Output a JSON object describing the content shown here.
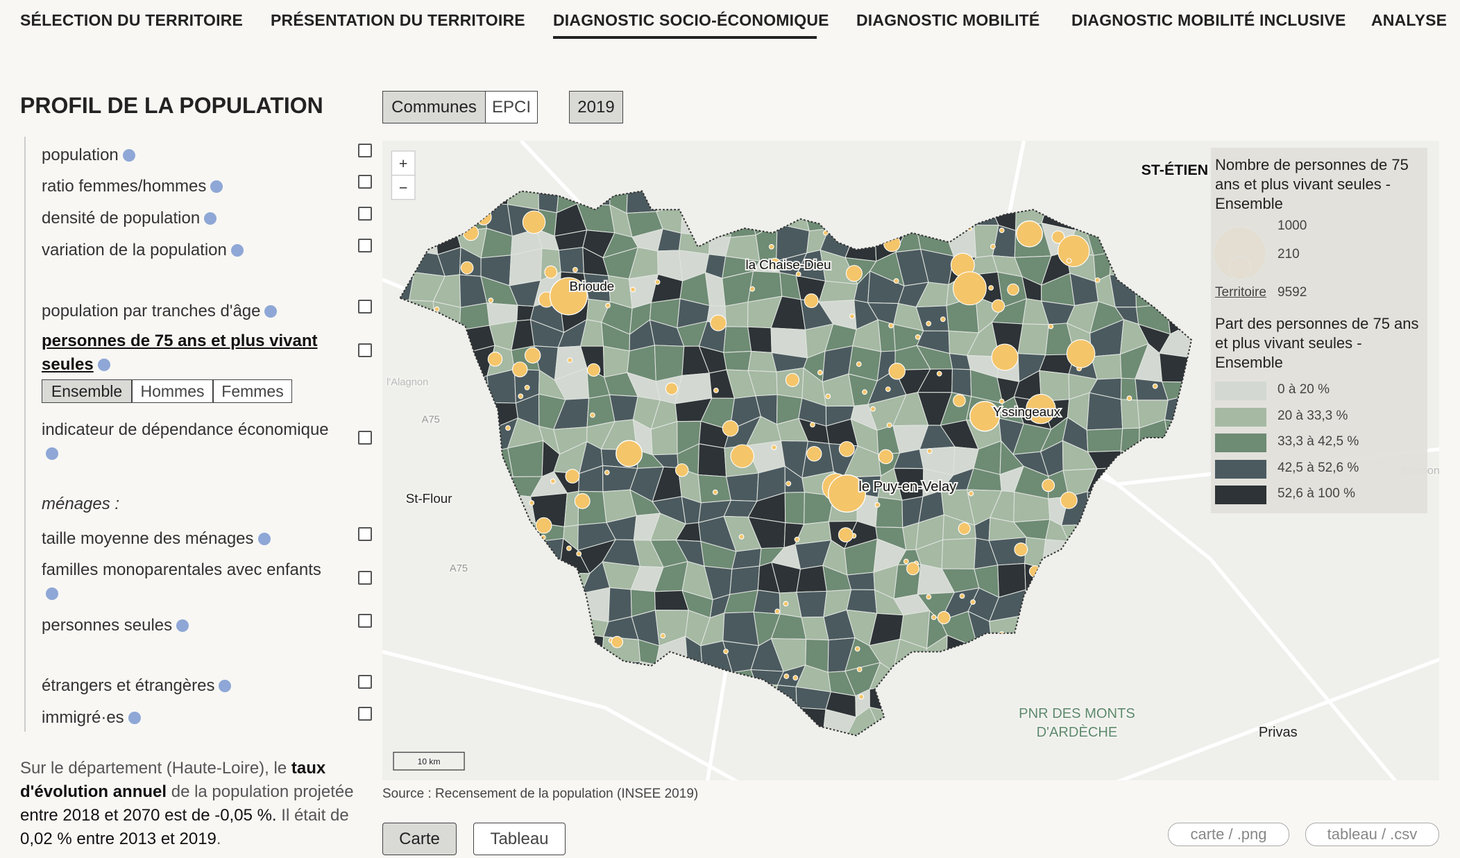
{
  "nav": [
    "SÉLECTION DU TERRITOIRE",
    "PRÉSENTATION DU TERRITOIRE",
    "DIAGNOSTIC SOCIO-ÉCONOMIQUE",
    "DIAGNOSTIC MOBILITÉ",
    "DIAGNOSTIC MOBILITÉ INCLUSIVE",
    "ANALYSE"
  ],
  "panel": {
    "title": "PROFIL DE LA POPULATION",
    "items": [
      "population",
      "ratio femmes/hommes",
      "densité de population",
      "variation de la population",
      "population par tranches d'âge",
      "personnes de 75 ans et plus vivant seules",
      "indicateur de dépendance économique",
      "ménages :",
      "taille moyenne des ménages",
      "familles monoparentales avec enfants",
      "personnes seules",
      "étrangers et étrangères",
      "immigré·es"
    ],
    "toggle": [
      "Ensemble",
      "Hommes",
      "Femmes"
    ]
  },
  "summary": [
    "Sur le département (Haute-Loire), le ",
    "taux d'évolution annuel",
    " de la population projetée ",
    "entre 2018 et 2070 est de -0,05 %.",
    " Il était de ",
    "0,02 % entre 2013 et 2019",
    "."
  ],
  "map_controls": {
    "level": [
      "Communes",
      "EPCI"
    ],
    "year": "2019",
    "zoom": [
      "+",
      "−"
    ]
  },
  "map_labels": [
    "Brioude",
    "la Chaise-Dieu",
    "Yssingeaux",
    "le Puy-en-Velay",
    "St-Flour",
    "PNR DES MONTS",
    "D'ARDÈCHE",
    "Privas",
    "ST-ÉTIEN",
    "Tournon",
    "l'Alagnon",
    "A75",
    "A75",
    "10 km"
  ],
  "legend": {
    "size_title": "Nombre de personnes de 75 ans et plus vivant seules - Ensemble",
    "size_labels": [
      "1000",
      "210"
    ],
    "territory": [
      "Territoire",
      "9592"
    ],
    "color_title": "Part des personnes de 75 ans et plus vivant seules - Ensemble",
    "classes": [
      {
        "label": "0 à 20 %",
        "color": "#d3d9d2"
      },
      {
        "label": "20 à 33,3 %",
        "color": "#a5b9a3"
      },
      {
        "label": "33,3 à 42,5 %",
        "color": "#6e8b74"
      },
      {
        "label": "42,5 à 52,6 %",
        "color": "#4b5a5f"
      },
      {
        "label": "52,6 à 100 %",
        "color": "#2d3336"
      }
    ]
  },
  "source": "Source : Recensement de la population (INSEE 2019)",
  "view_buttons": [
    "Carte",
    "Tableau"
  ],
  "downloads": [
    "carte / .png",
    "tableau / .csv"
  ]
}
